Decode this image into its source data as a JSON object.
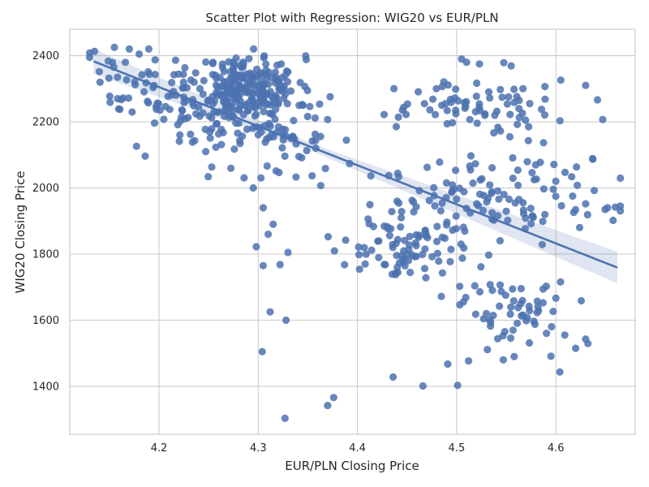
{
  "chart_data": {
    "type": "scatter",
    "title": "Scatter Plot with Regression: WIG20 vs EUR/PLN",
    "xlabel": "EUR/PLN Closing Price",
    "ylabel": "WIG20 Closing Price",
    "xlim": [
      4.11,
      4.68
    ],
    "ylim": [
      1255,
      2480
    ],
    "xticks": [
      4.2,
      4.3,
      4.4,
      4.5,
      4.6
    ],
    "yticks": [
      1400,
      1600,
      1800,
      2000,
      2200,
      2400
    ],
    "xtick_labels": [
      "4.2",
      "4.3",
      "4.4",
      "4.5",
      "4.6"
    ],
    "ytick_labels": [
      "1400",
      "1600",
      "1800",
      "2000",
      "2200",
      "2400"
    ],
    "grid": true,
    "colors": {
      "points": "#4c72b0",
      "line": "#4c72b0",
      "band": "#4c72b0",
      "grid": "#cccccc",
      "spine": "#cccccc"
    },
    "regression": {
      "x": [
        4.134,
        4.662
      ],
      "y": [
        2383,
        1759
      ],
      "ci_halfwidth": [
        28,
        42
      ]
    },
    "clusters": [
      {
        "cx": 4.29,
        "cy": 2300,
        "sx": 0.025,
        "sy": 50,
        "n": 230,
        "seed": 11
      },
      {
        "cx": 4.23,
        "cy": 2250,
        "sx": 0.03,
        "sy": 70,
        "n": 60,
        "seed": 12
      },
      {
        "cx": 4.31,
        "cy": 2150,
        "sx": 0.035,
        "sy": 60,
        "n": 70,
        "seed": 13
      },
      {
        "cx": 4.18,
        "cy": 2320,
        "sx": 0.025,
        "sy": 60,
        "n": 30,
        "seed": 14
      },
      {
        "cx": 4.53,
        "cy": 2250,
        "sx": 0.05,
        "sy": 50,
        "n": 80,
        "seed": 15
      },
      {
        "cx": 4.54,
        "cy": 1980,
        "sx": 0.06,
        "sy": 60,
        "n": 110,
        "seed": 16
      },
      {
        "cx": 4.45,
        "cy": 1810,
        "sx": 0.035,
        "sy": 50,
        "n": 90,
        "seed": 17
      },
      {
        "cx": 4.56,
        "cy": 1630,
        "sx": 0.025,
        "sy": 50,
        "n": 55,
        "seed": 18
      }
    ],
    "outliers": [
      [
        4.135,
        2413
      ],
      [
        4.155,
        2425
      ],
      [
        4.17,
        2420
      ],
      [
        4.18,
        2405
      ],
      [
        4.295,
        2000
      ],
      [
        4.298,
        1822
      ],
      [
        4.305,
        1765
      ],
      [
        4.305,
        1940
      ],
      [
        4.31,
        1860
      ],
      [
        4.315,
        1890
      ],
      [
        4.312,
        1625
      ],
      [
        4.322,
        1768
      ],
      [
        4.33,
        1805
      ],
      [
        4.328,
        1600
      ],
      [
        4.304,
        1505
      ],
      [
        4.327,
        1303
      ],
      [
        4.37,
        1342
      ],
      [
        4.376,
        1366
      ],
      [
        4.436,
        1428
      ],
      [
        4.466,
        1401
      ],
      [
        4.491,
        1467
      ],
      [
        4.501,
        1403
      ],
      [
        4.512,
        1477
      ],
      [
        4.531,
        1511
      ],
      [
        4.547,
        1480
      ],
      [
        4.558,
        1490
      ],
      [
        4.595,
        1491
      ],
      [
        4.604,
        1443
      ],
      [
        4.609,
        1555
      ],
      [
        4.62,
        1515
      ],
      [
        4.63,
        1543
      ],
      [
        4.63,
        2310
      ],
      [
        4.605,
        2326
      ],
      [
        4.66,
        1942
      ],
      [
        4.652,
        1940
      ],
      [
        4.63,
        1952
      ],
      [
        4.624,
        1880
      ],
      [
        4.632,
        1919
      ],
      [
        4.618,
        1926
      ],
      [
        4.505,
        2390
      ],
      [
        4.51,
        2380
      ],
      [
        4.523,
        2375
      ],
      [
        4.555,
        2369
      ]
    ]
  }
}
